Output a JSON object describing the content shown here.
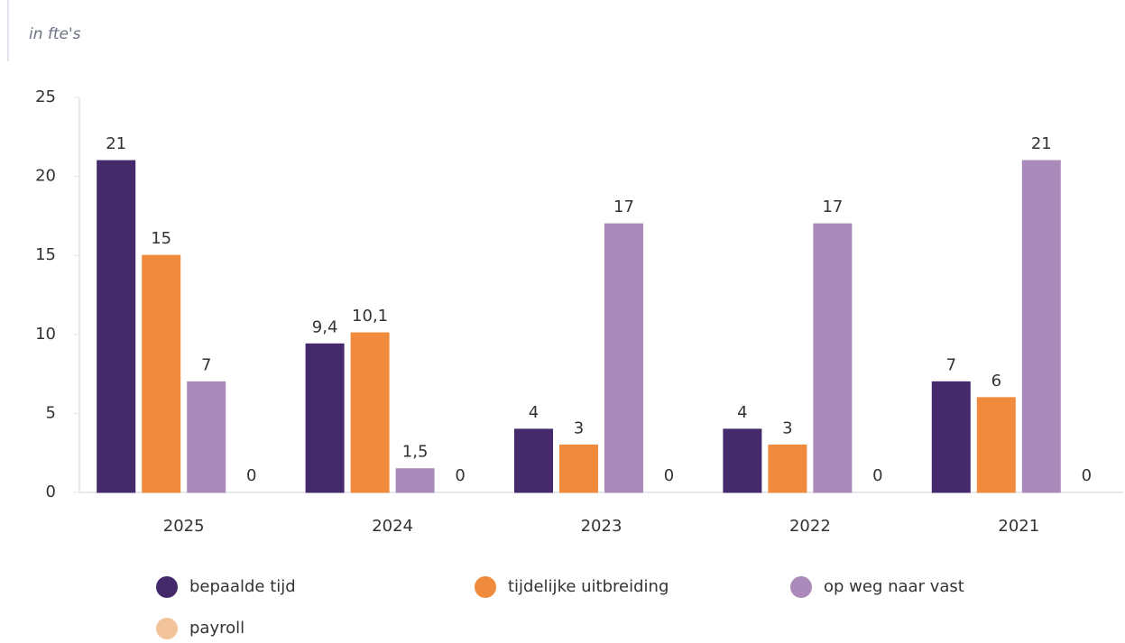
{
  "chart_data": {
    "type": "bar",
    "subtitle": "in fte's",
    "categories": [
      "2025",
      "2024",
      "2023",
      "2022",
      "2021"
    ],
    "series": [
      {
        "name": "bepaalde tijd",
        "color": "#442a6b",
        "values": [
          21,
          9.4,
          4,
          4,
          7
        ],
        "value_labels": [
          "21",
          "9,4",
          "4",
          "4",
          "7"
        ]
      },
      {
        "name": "tijdelijke uitbreiding",
        "color": "#f08a3c",
        "values": [
          15,
          10.1,
          3,
          3,
          6
        ],
        "value_labels": [
          "15",
          "10,1",
          "3",
          "3",
          "6"
        ]
      },
      {
        "name": "op weg naar vast",
        "color": "#a98aba",
        "values": [
          7,
          1.5,
          17,
          17,
          21
        ],
        "value_labels": [
          "7",
          "1,5",
          "17",
          "17",
          "21"
        ]
      },
      {
        "name": "payroll",
        "color": "#f3c49b",
        "values": [
          0,
          0,
          0,
          0,
          0
        ]
      }
    ],
    "ylim": [
      0,
      25
    ],
    "yticks": [
      0,
      5,
      10,
      15,
      20,
      25
    ]
  }
}
